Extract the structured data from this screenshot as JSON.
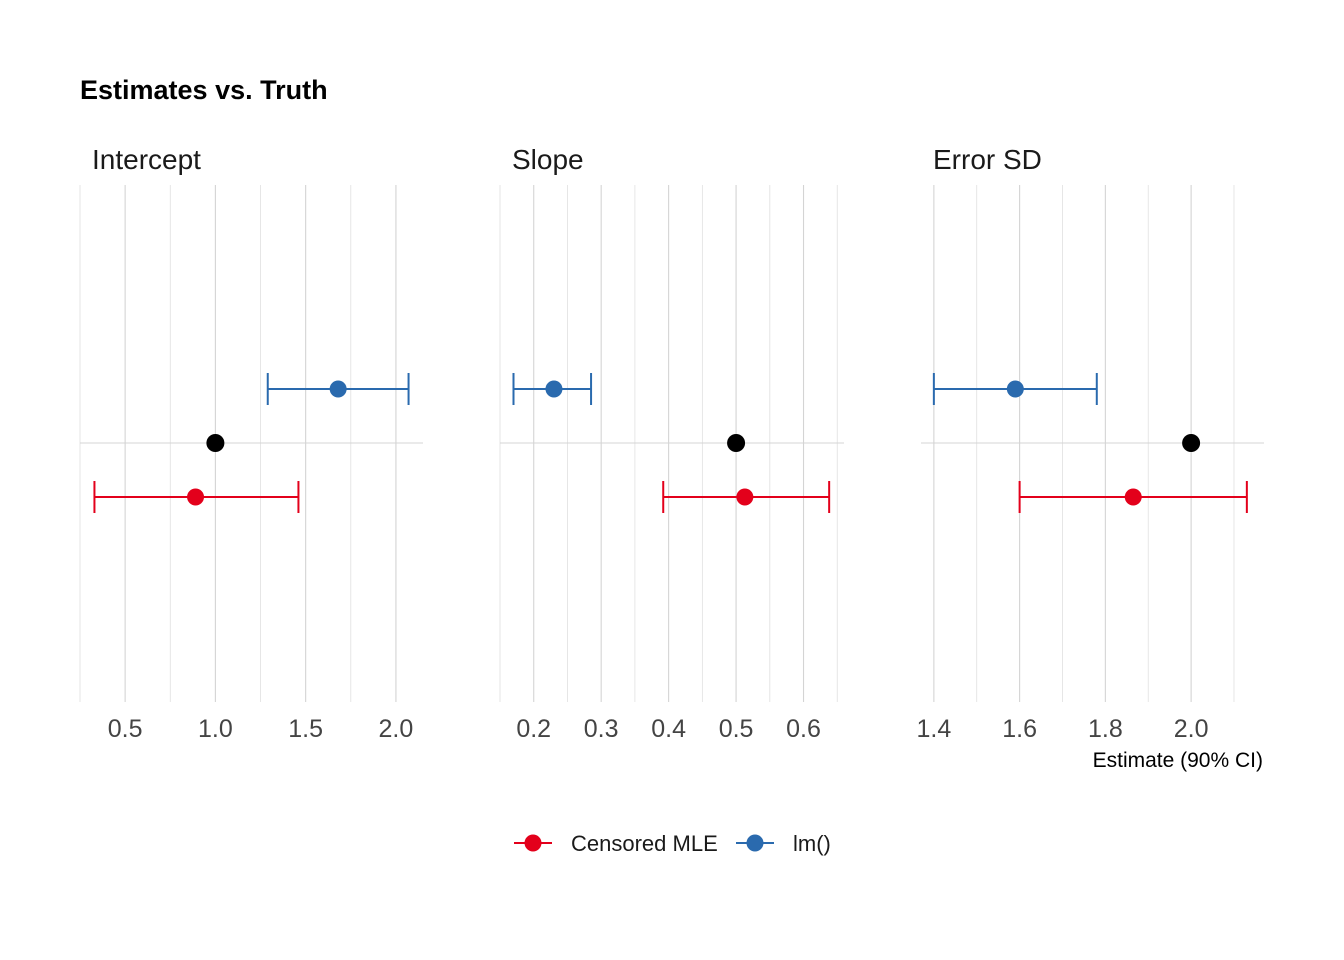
{
  "chart_data": {
    "type": "errorbar-dotplot",
    "title": "Estimates vs. Truth",
    "xlabel": "Estimate (90% CI)",
    "ylabel": "",
    "grid": true,
    "legend_position": "bottom",
    "series": [
      {
        "name": "Censored MLE",
        "color": "#e3001b"
      },
      {
        "name": "lm()",
        "color": "#2a6aae"
      },
      {
        "name": "",
        "color": "#000000"
      }
    ],
    "panels": [
      {
        "facet": "Intercept",
        "xlim": [
          0.25,
          2.15
        ],
        "ticks": [
          0.5,
          1.0,
          1.5,
          2.0
        ],
        "tick_labels": [
          "0.5",
          "1.0",
          "1.5",
          "2.0"
        ],
        "truth": 1.0,
        "estimates": [
          {
            "series": "lm()",
            "estimate": 1.68,
            "lower": 1.29,
            "upper": 2.07
          },
          {
            "series": "Censored MLE",
            "estimate": 0.89,
            "lower": 0.33,
            "upper": 1.46
          }
        ]
      },
      {
        "facet": "Slope",
        "xlim": [
          0.15,
          0.66
        ],
        "ticks": [
          0.2,
          0.3,
          0.4,
          0.5,
          0.6
        ],
        "tick_labels": [
          "0.2",
          "0.3",
          "0.4",
          "0.5",
          "0.6"
        ],
        "truth": 0.5,
        "estimates": [
          {
            "series": "lm()",
            "estimate": 0.23,
            "lower": 0.17,
            "upper": 0.285
          },
          {
            "series": "Censored MLE",
            "estimate": 0.513,
            "lower": 0.392,
            "upper": 0.638
          }
        ]
      },
      {
        "facet": "Error SD",
        "xlim": [
          1.37,
          2.17
        ],
        "ticks": [
          1.4,
          1.6,
          1.8,
          2.0
        ],
        "tick_labels": [
          "1.4",
          "1.6",
          "1.8",
          "2.0"
        ],
        "truth": 2.0,
        "estimates": [
          {
            "series": "lm()",
            "estimate": 1.59,
            "lower": 1.4,
            "upper": 1.78
          },
          {
            "series": "Censored MLE",
            "estimate": 1.865,
            "lower": 1.6,
            "upper": 2.13
          }
        ]
      }
    ]
  }
}
